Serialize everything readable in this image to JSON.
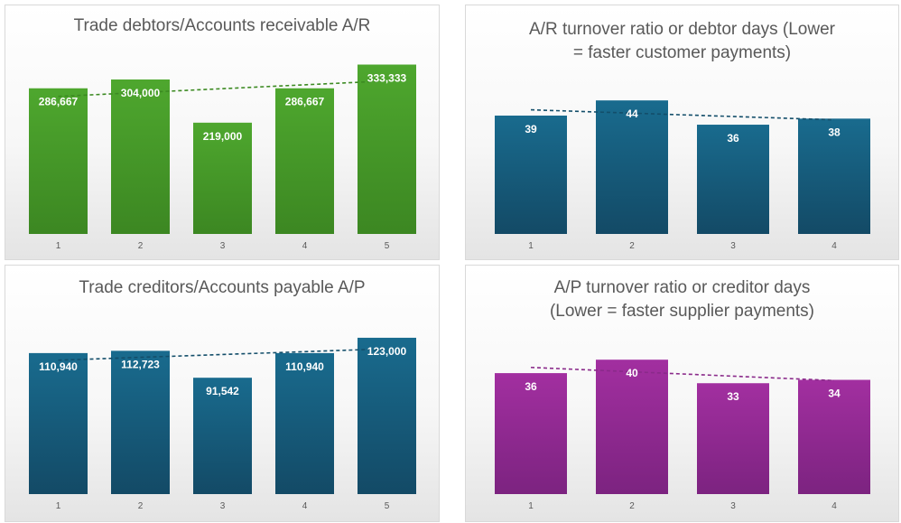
{
  "chart_data": [
    {
      "type": "bar",
      "title": "Trade debtors/Accounts receivable A/R",
      "categories": [
        "1",
        "2",
        "3",
        "4",
        "5"
      ],
      "values": [
        286667,
        304000,
        219000,
        286667,
        333333
      ],
      "labels": [
        "286,667",
        "304,000",
        "219,000",
        "286,667",
        "333,333"
      ],
      "ylim": [
        0,
        400000
      ],
      "color": "#4ea72e",
      "color_dark": "#3c8722",
      "trendline": {
        "type": "linear",
        "style": "dashed",
        "color": "#3c8a22"
      },
      "grid": false
    },
    {
      "type": "bar",
      "title": "A/R turnover ratio or debtor days (Lower = faster customer payments)",
      "title_lines": [
        "A/R turnover ratio or debtor days (Lower",
        "= faster customer payments)"
      ],
      "categories": [
        "1",
        "2",
        "3",
        "4"
      ],
      "values": [
        39,
        44,
        36,
        38
      ],
      "labels": [
        "39",
        "44",
        "36",
        "38"
      ],
      "ylim": [
        0,
        50
      ],
      "color": "#196b8e",
      "color_dark": "#134a66",
      "trendline": {
        "type": "linear",
        "style": "dashed",
        "color": "#134e6a"
      },
      "grid": false
    },
    {
      "type": "bar",
      "title": "Trade creditors/Accounts payable A/P",
      "categories": [
        "1",
        "2",
        "3",
        "4",
        "5"
      ],
      "values": [
        110940,
        112723,
        91542,
        110940,
        123000
      ],
      "labels": [
        "110,940",
        "112,723",
        "91,542",
        "110,940",
        "123,000"
      ],
      "ylim": [
        0,
        140000
      ],
      "color": "#196b8e",
      "color_dark": "#134a66",
      "trendline": {
        "type": "linear",
        "style": "dashed",
        "color": "#134e6a"
      },
      "grid": false
    },
    {
      "type": "bar",
      "title": "A/P turnover ratio or creditor days (Lower = faster supplier payments)",
      "title_lines": [
        "A/P turnover ratio or creditor days",
        "(Lower = faster supplier payments)"
      ],
      "categories": [
        "1",
        "2",
        "3",
        "4"
      ],
      "values": [
        36,
        40,
        33,
        34
      ],
      "labels": [
        "36",
        "40",
        "33",
        "34"
      ],
      "ylim": [
        0,
        50
      ],
      "color": "#a22fa0",
      "color_dark": "#7c2380",
      "trendline": {
        "type": "linear",
        "style": "dashed",
        "color": "#8a2a8a"
      },
      "grid": false
    }
  ]
}
